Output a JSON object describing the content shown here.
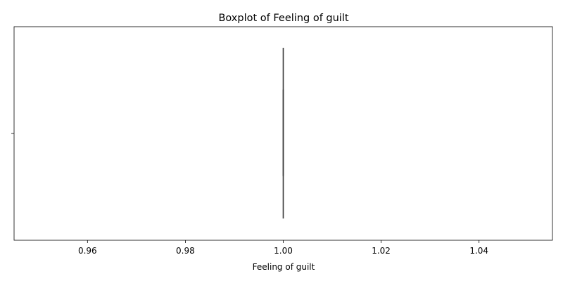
{
  "chart_data": {
    "type": "boxplot",
    "title": "Boxplot of Feeling of guilt",
    "xlabel": "Feeling of guilt",
    "ylabel": "",
    "xlim": [
      0.945,
      1.055
    ],
    "x_ticks": [
      0.96,
      0.98,
      1.0,
      1.02,
      1.04
    ],
    "x_tick_labels": [
      "0.96",
      "0.98",
      "1.00",
      "1.02",
      "1.04"
    ],
    "y_tick_labels": [
      ""
    ],
    "grid": false,
    "box": {
      "min": 1.0,
      "q1": 1.0,
      "median": 1.0,
      "q3": 1.0,
      "max": 1.0
    },
    "box_color": "#4c72b0",
    "line_color": "#3d3d3d"
  }
}
